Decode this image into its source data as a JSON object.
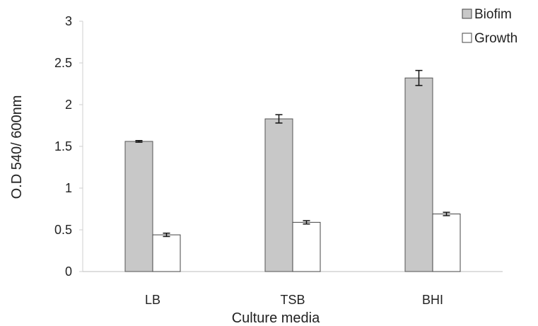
{
  "chart_data": {
    "type": "bar",
    "title": "",
    "xlabel": "Culture media",
    "ylabel": "O.D 540/ 600nm",
    "categories": [
      "LB",
      "TSB",
      "BHI"
    ],
    "ylim": [
      0,
      3
    ],
    "yticks": [
      0,
      0.5,
      1,
      1.5,
      2,
      2.5,
      3
    ],
    "ytick_labels": [
      "0",
      "0.5",
      "1",
      "1.5",
      "2",
      "2.5",
      "3"
    ],
    "grid": false,
    "legend_position": "top-right",
    "series": [
      {
        "name": "Biofim",
        "values": [
          1.56,
          1.83,
          2.32
        ],
        "errors": [
          0.01,
          0.05,
          0.09
        ],
        "color": "#c8c8c8"
      },
      {
        "name": "Growth",
        "values": [
          0.44,
          0.59,
          0.69
        ],
        "errors": [
          0.02,
          0.02,
          0.02
        ],
        "color": "#ffffff"
      }
    ]
  }
}
